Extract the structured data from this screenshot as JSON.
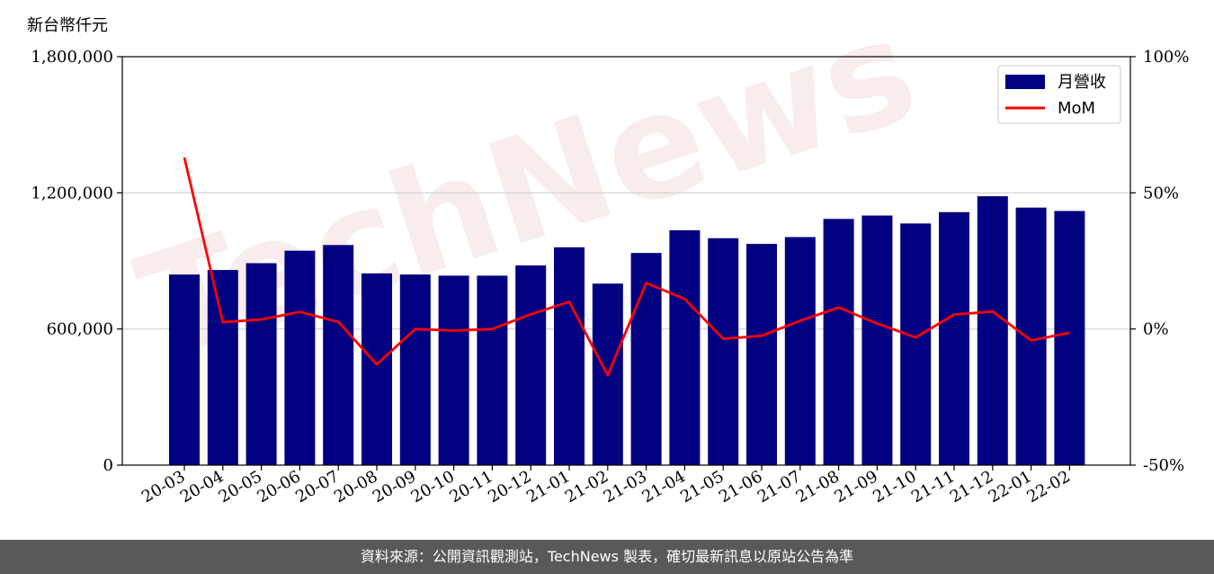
{
  "unit_label": "新台幣仟元",
  "footer_text": "資料來源：公開資訊觀測站，TechNews 製表，確切最新訊息以原站公告為準",
  "watermark_text": "TechNews",
  "colors": {
    "bar": "#000080",
    "line": "#ff0000",
    "grid": "#d0d0d0",
    "footer_bg": "#595959"
  },
  "chart_data": {
    "type": "bar",
    "categories": [
      "20-03",
      "20-04",
      "20-05",
      "20-06",
      "20-07",
      "20-08",
      "20-09",
      "20-10",
      "20-11",
      "20-12",
      "21-01",
      "21-02",
      "21-03",
      "21-04",
      "21-05",
      "21-06",
      "21-07",
      "21-08",
      "21-09",
      "21-10",
      "21-11",
      "21-12",
      "22-01",
      "22-02"
    ],
    "series": [
      {
        "name": "月營收",
        "axis": "left",
        "type": "bar",
        "values": [
          840000,
          860000,
          890000,
          945000,
          970000,
          845000,
          840000,
          835000,
          835000,
          880000,
          960000,
          800000,
          935000,
          1035000,
          1000000,
          975000,
          1005000,
          1085000,
          1100000,
          1065000,
          1115000,
          1185000,
          1135000,
          1120000
        ]
      },
      {
        "name": "MoM",
        "axis": "right",
        "type": "line",
        "values": [
          63,
          2.5,
          3.5,
          6.3,
          2.6,
          -13,
          0,
          -0.6,
          0,
          5.4,
          10,
          -17,
          16.9,
          11,
          -3.6,
          -2.5,
          3,
          7.9,
          2,
          -3.1,
          5.3,
          6.4,
          -4.2,
          -1.4
        ]
      }
    ],
    "y_left": {
      "min": 0,
      "max": 1800000,
      "ticks": [
        "0",
        "600,000",
        "1,200,000",
        "1,800,000"
      ],
      "tick_values": [
        0,
        600000,
        1200000,
        1800000
      ]
    },
    "y_right": {
      "min": -50,
      "max": 100,
      "ticks": [
        "-50%",
        "0%",
        "50%",
        "100%"
      ],
      "tick_values": [
        -50,
        0,
        50,
        100
      ]
    },
    "grid": true,
    "legend_position": "top-right"
  }
}
